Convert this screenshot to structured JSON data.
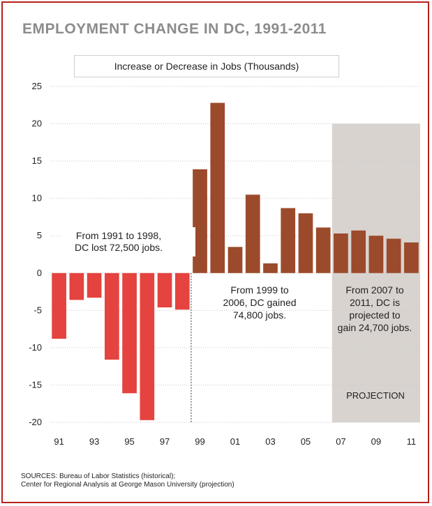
{
  "chart_data": {
    "type": "bar",
    "title": "EMPLOYMENT CHANGE IN DC, 1991-2011",
    "subtitle": "Increase or Decrease in Jobs (Thousands)",
    "categories": [
      "91",
      "92",
      "93",
      "94",
      "95",
      "96",
      "97",
      "98",
      "99",
      "00",
      "01",
      "02",
      "03",
      "04",
      "05",
      "06",
      "07",
      "08",
      "09",
      "10",
      "11"
    ],
    "x_tick_labels": [
      "91",
      "93",
      "95",
      "97",
      "99",
      "01",
      "03",
      "05",
      "07",
      "09",
      "11"
    ],
    "values": [
      -8.8,
      -3.6,
      -3.3,
      -11.6,
      -16.1,
      -19.7,
      -4.6,
      -4.9,
      13.9,
      22.8,
      3.5,
      10.5,
      1.3,
      8.7,
      8.0,
      6.1,
      5.3,
      5.7,
      5.0,
      4.6,
      4.1
    ],
    "y_ticks": [
      25,
      20,
      15,
      10,
      5,
      0,
      -5,
      -10,
      -15,
      -20
    ],
    "ylim": [
      -20,
      25
    ],
    "grid": true,
    "colors": {
      "historical_negative": "#e5433f",
      "historical_positive": "#9b4a2b",
      "projection_band": "#d8d3cf",
      "frame": "#b5211c"
    },
    "projection_label": "PROJECTION",
    "annotations": {
      "lost": [
        "From 1991 to 1998,",
        "DC lost 72,500 jobs."
      ],
      "gained": [
        "From 1999 to",
        "2006, DC gained",
        "74,800 jobs."
      ],
      "projected": [
        "From 2007 to",
        "2011, DC is",
        "projected to",
        "gain 24,700 jobs."
      ]
    }
  },
  "sources": {
    "line1": "SOURCES: Bureau of Labor Statistics (historical);",
    "line2": "Center for Regional Analysis at George Mason University (projection)"
  }
}
